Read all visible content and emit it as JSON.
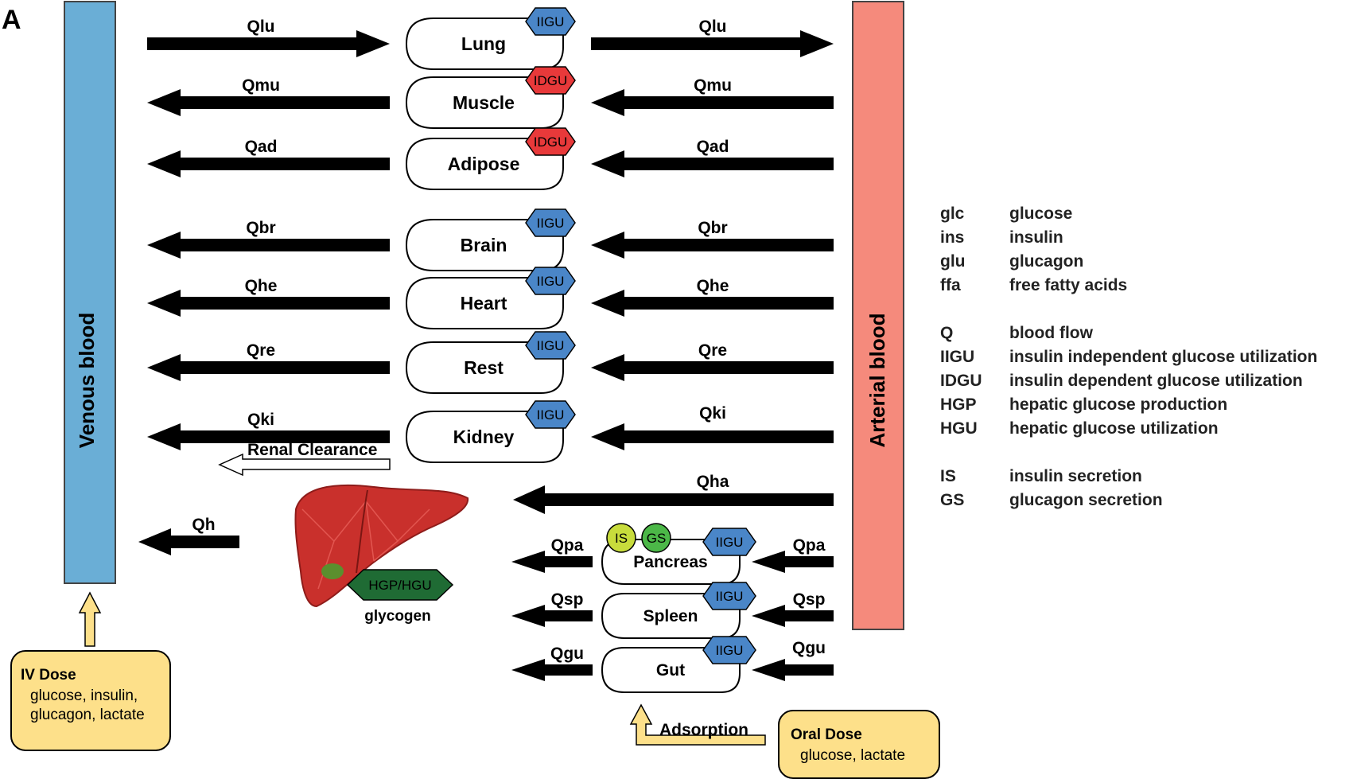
{
  "panel_label": "A",
  "venous": {
    "label": "Venous blood",
    "color": "#6aaed6"
  },
  "arterial": {
    "label": "Arterial blood",
    "color": "#f58a7c"
  },
  "colors": {
    "iigu": "#4a86c8",
    "idgu": "#e8393a",
    "hgp": "#1f6b34",
    "dose": "#fde08a",
    "is": "#c8dc3c",
    "gs": "#4cb848"
  },
  "organs": [
    {
      "name": "Lung",
      "tag": "IIGU",
      "flow_left": "Qlu",
      "flow_right": "Qlu"
    },
    {
      "name": "Muscle",
      "tag": "IDGU",
      "flow_left": "Qmu",
      "flow_right": "Qmu"
    },
    {
      "name": "Adipose",
      "tag": "IDGU",
      "flow_left": "Qad",
      "flow_right": "Qad"
    },
    {
      "name": "Brain",
      "tag": "IIGU",
      "flow_left": "Qbr",
      "flow_right": "Qbr"
    },
    {
      "name": "Heart",
      "tag": "IIGU",
      "flow_left": "Qhe",
      "flow_right": "Qhe"
    },
    {
      "name": "Rest",
      "tag": "IIGU",
      "flow_left": "Qre",
      "flow_right": "Qre"
    },
    {
      "name": "Kidney",
      "tag": "IIGU",
      "flow_left": "Qki",
      "flow_right": "Qki"
    }
  ],
  "renal_clearance": "Renal Clearance",
  "liver": {
    "flow_in": "Qha",
    "flow_out": "Qh",
    "tag": "HGP/HGU",
    "caption": "glycogen"
  },
  "splanchnic": [
    {
      "name": "Pancreas",
      "tag": "IIGU",
      "flow_left": "Qpa",
      "flow_right": "Qpa",
      "extra": [
        "IS",
        "GS"
      ]
    },
    {
      "name": "Spleen",
      "tag": "IIGU",
      "flow_left": "Qsp",
      "flow_right": "Qsp"
    },
    {
      "name": "Gut",
      "tag": "IIGU",
      "flow_left": "Qgu",
      "flow_right": "Qgu"
    }
  ],
  "iv_dose": {
    "title": "IV Dose",
    "lines": [
      "glucose, insulin,",
      "glucagon, lactate"
    ]
  },
  "oral_dose": {
    "title": "Oral Dose",
    "lines": [
      "glucose, lactate"
    ]
  },
  "adsorption": "Adsorption",
  "legend": [
    {
      "abbr": "glc",
      "desc": "glucose"
    },
    {
      "abbr": "ins",
      "desc": "insulin"
    },
    {
      "abbr": "glu",
      "desc": "glucagon"
    },
    {
      "abbr": "ffa",
      "desc": "free fatty acids"
    },
    {
      "abbr": "Q",
      "desc": "blood flow"
    },
    {
      "abbr": "IIGU",
      "desc": "insulin independent glucose utilization"
    },
    {
      "abbr": "IDGU",
      "desc": "insulin dependent glucose utilization"
    },
    {
      "abbr": "HGP",
      "desc": "hepatic glucose production"
    },
    {
      "abbr": "HGU",
      "desc": "hepatic glucose utilization"
    },
    {
      "abbr": "IS",
      "desc": "insulin secretion"
    },
    {
      "abbr": "GS",
      "desc": "glucagon secretion"
    }
  ]
}
